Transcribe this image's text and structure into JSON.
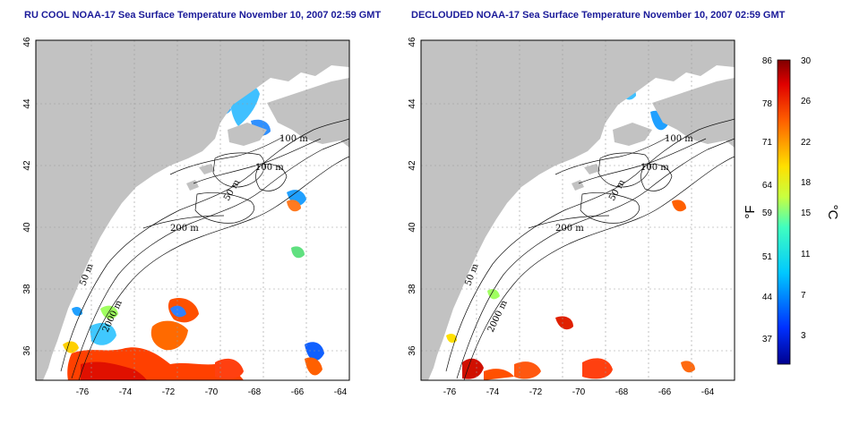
{
  "titles": {
    "left": "RU COOL NOAA-17 Sea Surface Temperature November 10, 2007 02:59 GMT",
    "right": "DECLOUDED NOAA-17 Sea Surface Temperature November 10, 2007 02:59 GMT"
  },
  "axes": {
    "lon_ticks": [
      "-76",
      "-74",
      "-72",
      "-70",
      "-68",
      "-66",
      "-64"
    ],
    "lat_ticks": [
      "36",
      "38",
      "40",
      "42",
      "44",
      "46"
    ]
  },
  "contour_labels": {
    "c100a": "100 m",
    "c100b": "100 m",
    "c50": "50 m",
    "c200": "200 m",
    "c50b": "50 m",
    "c2000": "2000 m"
  },
  "colorbar": {
    "fahrenheit_ticks": [
      "86",
      "78",
      "71",
      "64",
      "59",
      "51",
      "44",
      "37"
    ],
    "celsius_ticks": [
      "30",
      "26",
      "22",
      "18",
      "15",
      "11",
      "7",
      "3"
    ],
    "fahrenheit_unit": "°F",
    "celsius_unit": "°C",
    "range_c": [
      0,
      30
    ]
  },
  "colors": {
    "land": "#c2c2c2",
    "ocean": "#ffffff",
    "title": "#1a1a99"
  }
}
